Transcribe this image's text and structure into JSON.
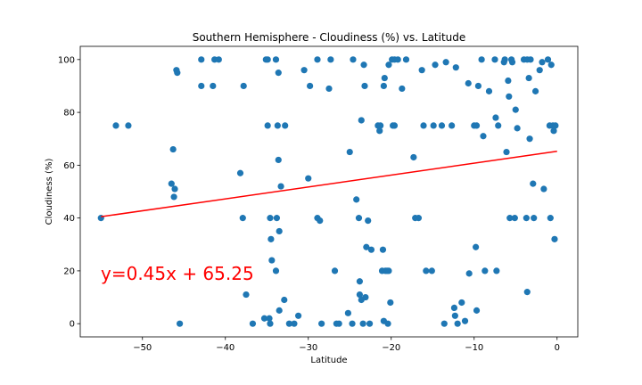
{
  "chart_data": {
    "type": "scatter",
    "title": "Southern Hemisphere - Cloudiness (%) vs. Latitude",
    "xlabel": "Latitude",
    "ylabel": "Cloudiness (%)",
    "xlim": [
      -57.5,
      2.5
    ],
    "ylim": [
      -5,
      105
    ],
    "xticks": [
      -50,
      -40,
      -30,
      -20,
      -10,
      0
    ],
    "yticks": [
      0,
      20,
      40,
      60,
      80,
      100
    ],
    "grid": false,
    "point_color": "#1f77b4",
    "regression": {
      "slope": 0.45,
      "intercept": 65.25,
      "x_range": [
        -55,
        0
      ],
      "color": "#ff0000",
      "equation_text": "y=0.45x + 65.25"
    },
    "points": [
      [
        -55.0,
        40
      ],
      [
        -53.2,
        75
      ],
      [
        -51.7,
        75
      ],
      [
        -46.5,
        53
      ],
      [
        -46.3,
        66
      ],
      [
        -46.2,
        48
      ],
      [
        -46.1,
        51
      ],
      [
        -45.9,
        96
      ],
      [
        -45.8,
        95
      ],
      [
        -45.5,
        0
      ],
      [
        -42.9,
        100
      ],
      [
        -42.9,
        90
      ],
      [
        -41.5,
        90
      ],
      [
        -41.3,
        100
      ],
      [
        -40.8,
        100
      ],
      [
        -38.2,
        57
      ],
      [
        -37.9,
        40
      ],
      [
        -37.8,
        90
      ],
      [
        -37.5,
        11
      ],
      [
        -36.7,
        0
      ],
      [
        -35.3,
        2
      ],
      [
        -35.1,
        100
      ],
      [
        -34.9,
        100
      ],
      [
        -34.9,
        75
      ],
      [
        -34.7,
        2
      ],
      [
        -34.6,
        0
      ],
      [
        -34.6,
        40
      ],
      [
        -34.5,
        32
      ],
      [
        -34.4,
        24
      ],
      [
        -33.9,
        100
      ],
      [
        -33.9,
        20
      ],
      [
        -33.8,
        40
      ],
      [
        -33.7,
        75
      ],
      [
        -33.6,
        62
      ],
      [
        -33.6,
        95
      ],
      [
        -33.5,
        5
      ],
      [
        -33.5,
        35
      ],
      [
        -33.3,
        52
      ],
      [
        -32.9,
        9
      ],
      [
        -32.8,
        75
      ],
      [
        -32.3,
        0
      ],
      [
        -31.7,
        0
      ],
      [
        -31.2,
        3
      ],
      [
        -30.5,
        96
      ],
      [
        -30.0,
        55
      ],
      [
        -29.8,
        90
      ],
      [
        -28.9,
        40
      ],
      [
        -28.6,
        39
      ],
      [
        -28.4,
        0
      ],
      [
        -28.9,
        100
      ],
      [
        -27.5,
        89
      ],
      [
        -27.3,
        100
      ],
      [
        -26.8,
        20
      ],
      [
        -26.6,
        0
      ],
      [
        -26.3,
        0
      ],
      [
        -25.2,
        4
      ],
      [
        -25.0,
        65
      ],
      [
        -24.7,
        0
      ],
      [
        -24.6,
        100
      ],
      [
        -24.2,
        47
      ],
      [
        -23.8,
        16
      ],
      [
        -23.9,
        40
      ],
      [
        -23.8,
        11
      ],
      [
        -23.6,
        9
      ],
      [
        -23.6,
        77
      ],
      [
        -23.4,
        0
      ],
      [
        -23.3,
        98
      ],
      [
        -23.2,
        90
      ],
      [
        -23.1,
        10
      ],
      [
        -23.0,
        29
      ],
      [
        -22.8,
        39
      ],
      [
        -22.6,
        0
      ],
      [
        -22.4,
        28
      ],
      [
        -21.6,
        75
      ],
      [
        -21.4,
        73
      ],
      [
        -21.3,
        75
      ],
      [
        -21.1,
        20
      ],
      [
        -21.0,
        28
      ],
      [
        -20.9,
        1
      ],
      [
        -20.9,
        90
      ],
      [
        -20.8,
        93
      ],
      [
        -20.7,
        20
      ],
      [
        -20.5,
        20
      ],
      [
        -20.4,
        0
      ],
      [
        -20.3,
        20
      ],
      [
        -20.3,
        98
      ],
      [
        -20.1,
        8
      ],
      [
        -19.9,
        100
      ],
      [
        -19.8,
        75
      ],
      [
        -19.6,
        75
      ],
      [
        -19.6,
        100
      ],
      [
        -19.2,
        100
      ],
      [
        -18.7,
        89
      ],
      [
        -18.2,
        100
      ],
      [
        -17.3,
        63
      ],
      [
        -17.1,
        40
      ],
      [
        -16.7,
        40
      ],
      [
        -16.3,
        96
      ],
      [
        -16.1,
        75
      ],
      [
        -15.8,
        20
      ],
      [
        -15.1,
        20
      ],
      [
        -14.9,
        75
      ],
      [
        -14.7,
        98
      ],
      [
        -13.9,
        75
      ],
      [
        -13.6,
        0
      ],
      [
        -13.4,
        99
      ],
      [
        -12.7,
        75
      ],
      [
        -12.4,
        6
      ],
      [
        -12.3,
        3
      ],
      [
        -12.2,
        97
      ],
      [
        -12.0,
        0
      ],
      [
        -11.5,
        8
      ],
      [
        -11.1,
        1
      ],
      [
        -10.7,
        91
      ],
      [
        -10.6,
        19
      ],
      [
        -10.0,
        75
      ],
      [
        -9.8,
        29
      ],
      [
        -9.7,
        5
      ],
      [
        -9.7,
        75
      ],
      [
        -9.5,
        90
      ],
      [
        -9.1,
        100
      ],
      [
        -8.9,
        71
      ],
      [
        -8.7,
        20
      ],
      [
        -8.2,
        88
      ],
      [
        -7.5,
        100
      ],
      [
        -7.4,
        78
      ],
      [
        -7.3,
        20
      ],
      [
        -7.1,
        75
      ],
      [
        -6.4,
        99
      ],
      [
        -6.3,
        100
      ],
      [
        -6.1,
        65
      ],
      [
        -5.9,
        92
      ],
      [
        -5.8,
        86
      ],
      [
        -5.7,
        40
      ],
      [
        -5.5,
        100
      ],
      [
        -5.4,
        99
      ],
      [
        -5.1,
        40
      ],
      [
        -5.0,
        81
      ],
      [
        -4.8,
        74
      ],
      [
        -4.0,
        100
      ],
      [
        -3.7,
        40
      ],
      [
        -3.6,
        12
      ],
      [
        -3.6,
        100
      ],
      [
        -3.4,
        93
      ],
      [
        -3.3,
        70
      ],
      [
        -3.2,
        100
      ],
      [
        -2.9,
        53
      ],
      [
        -2.8,
        40
      ],
      [
        -2.6,
        88
      ],
      [
        -2.1,
        96
      ],
      [
        -1.8,
        99
      ],
      [
        -1.6,
        51
      ],
      [
        -1.1,
        100
      ],
      [
        -0.9,
        75
      ],
      [
        -0.8,
        40
      ],
      [
        -0.7,
        98
      ],
      [
        -0.5,
        75
      ],
      [
        -0.4,
        73
      ],
      [
        -0.3,
        32
      ],
      [
        -0.2,
        75
      ]
    ]
  }
}
